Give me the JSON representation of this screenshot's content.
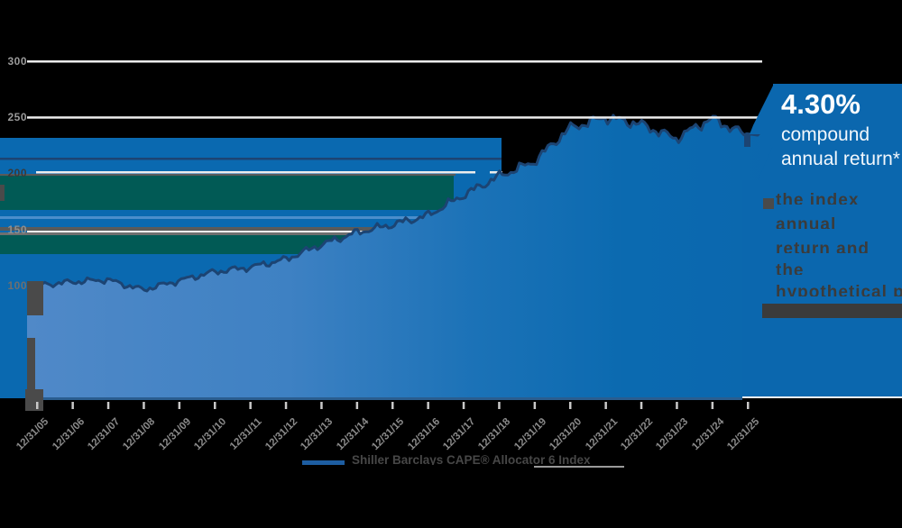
{
  "callout": {
    "rate": "4.30%",
    "line1": "compound",
    "line2": "annual return*"
  },
  "legend": {
    "label": "Shiller Barclays CAPE® Allocator 6 Index"
  },
  "glitch_text": {
    "lines": [
      "the index",
      "annual",
      "return and",
      "the",
      "hypothetical p"
    ]
  },
  "chart_data": {
    "type": "area",
    "title": "",
    "xlabel": "",
    "ylabel": "",
    "x_tick_labels": [
      "12/31/05",
      "12/31/06",
      "12/31/07",
      "12/31/08",
      "12/31/09",
      "12/31/10",
      "12/31/11",
      "12/31/12",
      "12/31/13",
      "12/31/14",
      "12/31/15",
      "12/31/16",
      "12/31/17",
      "12/31/18",
      "12/31/19",
      "12/31/20",
      "12/31/21",
      "12/31/22",
      "12/31/23",
      "12/31/24",
      "12/31/25"
    ],
    "series": [
      {
        "name": "Shiller Barclays CAPE® Allocator 6 Index",
        "values": [
          100,
          103,
          105,
          96,
          104,
          112,
          116,
          123,
          136,
          147,
          154,
          162,
          180,
          197,
          210,
          240,
          250,
          244,
          231,
          249,
          234
        ]
      }
    ],
    "y_ticks": [
      {
        "value": 300,
        "label": "300",
        "label_color": "#9a9a9a"
      },
      {
        "value": 250,
        "label": "250",
        "label_color": "#9a9a9a"
      },
      {
        "value": 200,
        "label": "200",
        "label_color": "#3a3a3a"
      },
      {
        "value": 150,
        "label": "150",
        "label_color": "#8f8f8f"
      },
      {
        "value": 100,
        "label": "100",
        "label_color": "#6f6f6f"
      }
    ],
    "ylim": [
      0,
      300
    ],
    "grid": true,
    "legend_position": "bottom-center"
  },
  "colors": {
    "band_blue": "#0a69b0",
    "teal": "#015a55",
    "navy": "#1c4473",
    "fill_left": "#5089c8",
    "fill_mid": "#2e7abc",
    "fill_right": "#0b68ae",
    "panel_blue": "#0b67ae",
    "gridline_white": "#ececec",
    "grid_shadow": "#5a5a5a",
    "grid_shadow2": "#6f6f6f",
    "light_stripe": "#4b8ecb",
    "right_dash": "#5a8fc0",
    "right_dash_gray": "#9a9a9a",
    "tick": "#c9c9c9",
    "x_label": "#8a8a8a",
    "gray_block": "#4a4a4a",
    "legend_swatch": "#1d5da1",
    "glitch_block": "#3b3b3b",
    "bottom_edge_navy": "#2a5d8f"
  }
}
